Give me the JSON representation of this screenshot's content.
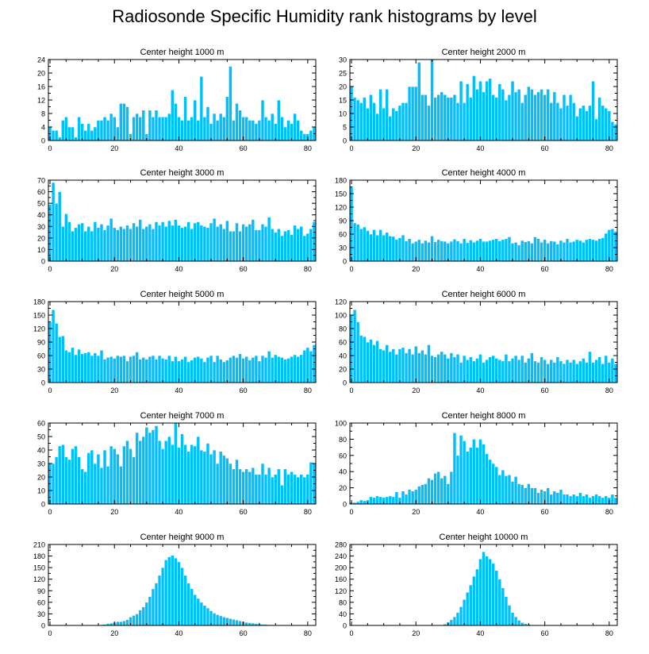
{
  "title": "Radiosonde Specific Humidity rank histograms by level",
  "colors": {
    "bar": "#00BFFF",
    "bar_edge": "#ffffff",
    "axis": "#000000",
    "background": "#ffffff"
  },
  "chart_data": [
    {
      "type": "bar",
      "title": "Center height 1000 m",
      "xlim": [
        -0.5,
        82.5
      ],
      "ylim": [
        0,
        24
      ],
      "yticks": [
        0,
        4,
        8,
        12,
        16,
        20,
        24
      ],
      "xticks": [
        0,
        20,
        40,
        60,
        80
      ],
      "xlabel": "",
      "ylabel": "",
      "values": [
        4,
        3,
        3,
        1,
        6,
        7,
        4,
        4,
        1,
        7,
        5,
        3,
        5,
        3,
        4,
        6,
        6,
        7,
        6,
        8,
        7,
        4,
        11,
        11,
        10,
        2,
        7,
        8,
        7,
        9,
        2,
        9,
        7,
        9,
        7,
        7,
        7,
        8,
        15,
        11,
        7,
        6,
        13,
        6,
        7,
        12,
        6,
        19,
        7,
        10,
        5,
        8,
        6,
        8,
        7,
        13,
        22,
        6,
        11,
        9,
        7,
        7,
        6,
        6,
        5,
        6,
        12,
        7,
        6,
        8,
        5,
        12,
        7,
        4,
        6,
        5,
        8,
        6,
        3,
        2,
        2,
        3,
        4
      ]
    },
    {
      "type": "bar",
      "title": "Center height 2000 m",
      "xlim": [
        -0.5,
        82.5
      ],
      "ylim": [
        0,
        30
      ],
      "yticks": [
        0,
        5,
        10,
        15,
        20,
        25,
        30
      ],
      "xticks": [
        0,
        20,
        40,
        60,
        80
      ],
      "xlabel": "",
      "ylabel": "",
      "values": [
        20,
        16,
        15,
        14,
        16,
        12,
        17,
        14,
        10,
        19,
        12,
        19,
        9,
        12,
        11,
        13,
        14,
        14,
        20,
        20,
        20,
        29,
        17,
        17,
        13,
        30,
        16,
        17,
        18,
        17,
        16,
        16,
        17,
        14,
        22,
        14,
        21,
        16,
        24,
        19,
        22,
        18,
        22,
        23,
        17,
        16,
        21,
        19,
        15,
        17,
        22,
        18,
        19,
        14,
        17,
        20,
        19,
        17,
        18,
        19,
        17,
        19,
        14,
        18,
        14,
        12,
        17,
        13,
        17,
        14,
        9,
        12,
        13,
        11,
        13,
        22,
        8,
        16,
        13,
        12,
        11,
        7,
        6
      ]
    },
    {
      "type": "bar",
      "title": "Center height 3000 m",
      "xlim": [
        -0.5,
        82.5
      ],
      "ylim": [
        0,
        70
      ],
      "yticks": [
        0,
        10,
        20,
        30,
        40,
        50,
        60,
        70
      ],
      "xticks": [
        0,
        20,
        40,
        60,
        80
      ],
      "xlabel": "",
      "ylabel": "",
      "values": [
        49,
        68,
        50,
        60,
        30,
        41,
        34,
        26,
        29,
        32,
        33,
        26,
        30,
        26,
        34,
        29,
        32,
        27,
        31,
        37,
        29,
        27,
        30,
        28,
        31,
        28,
        33,
        30,
        36,
        28,
        30,
        32,
        28,
        34,
        31,
        34,
        30,
        35,
        31,
        36,
        31,
        29,
        30,
        34,
        28,
        33,
        34,
        31,
        30,
        29,
        33,
        37,
        30,
        32,
        28,
        35,
        26,
        26,
        33,
        26,
        32,
        30,
        32,
        36,
        27,
        27,
        32,
        30,
        38,
        28,
        25,
        28,
        22,
        26,
        27,
        23,
        31,
        28,
        30,
        22,
        24,
        28,
        34
      ]
    },
    {
      "type": "bar",
      "title": "Center height 4000 m",
      "xlim": [
        -0.5,
        82.5
      ],
      "ylim": [
        0,
        180
      ],
      "yticks": [
        0,
        30,
        60,
        90,
        120,
        150,
        180
      ],
      "xticks": [
        0,
        20,
        40,
        60,
        80
      ],
      "xlabel": "",
      "ylabel": "",
      "values": [
        165,
        85,
        82,
        72,
        76,
        68,
        60,
        70,
        58,
        70,
        58,
        64,
        56,
        55,
        48,
        52,
        58,
        45,
        50,
        40,
        44,
        48,
        40,
        46,
        42,
        56,
        43,
        48,
        45,
        44,
        40,
        44,
        49,
        45,
        40,
        50,
        41,
        47,
        42,
        46,
        50,
        44,
        44,
        46,
        48,
        50,
        45,
        48,
        50,
        54,
        40,
        42,
        36,
        46,
        43,
        45,
        40,
        54,
        50,
        42,
        48,
        40,
        45,
        44,
        38,
        46,
        42,
        50,
        42,
        44,
        48,
        46,
        42,
        48,
        50,
        48,
        46,
        50,
        52,
        62,
        70,
        72,
        66
      ]
    },
    {
      "type": "bar",
      "title": "Center height 5000 m",
      "xlim": [
        -0.5,
        82.5
      ],
      "ylim": [
        0,
        180
      ],
      "yticks": [
        0,
        30,
        60,
        90,
        120,
        150,
        180
      ],
      "xticks": [
        0,
        20,
        40,
        60,
        80
      ],
      "xlabel": "",
      "ylabel": "",
      "values": [
        135,
        162,
        132,
        102,
        104,
        72,
        68,
        78,
        62,
        74,
        64,
        66,
        68,
        60,
        66,
        60,
        72,
        52,
        56,
        58,
        54,
        60,
        58,
        60,
        48,
        58,
        60,
        68,
        52,
        56,
        52,
        58,
        60,
        52,
        60,
        54,
        52,
        60,
        48,
        58,
        48,
        52,
        58,
        46,
        50,
        56,
        58,
        54,
        46,
        56,
        60,
        46,
        60,
        52,
        46,
        50,
        56,
        60,
        56,
        64,
        54,
        58,
        50,
        56,
        60,
        48,
        60,
        56,
        70,
        56,
        62,
        58,
        56,
        52,
        54,
        58,
        62,
        58,
        62,
        72,
        78,
        70,
        84
      ]
    },
    {
      "type": "bar",
      "title": "Center height 6000 m",
      "xlim": [
        -0.5,
        82.5
      ],
      "ylim": [
        0,
        120
      ],
      "yticks": [
        0,
        20,
        40,
        60,
        80,
        100,
        120
      ],
      "xticks": [
        0,
        20,
        40,
        60,
        80
      ],
      "xlabel": "",
      "ylabel": "",
      "values": [
        100,
        108,
        90,
        70,
        68,
        60,
        64,
        56,
        62,
        50,
        48,
        56,
        46,
        50,
        42,
        50,
        52,
        44,
        50,
        42,
        54,
        44,
        48,
        42,
        56,
        40,
        38,
        42,
        46,
        42,
        36,
        44,
        38,
        42,
        30,
        40,
        34,
        38,
        32,
        36,
        42,
        30,
        34,
        38,
        40,
        36,
        34,
        32,
        42,
        32,
        36,
        40,
        34,
        40,
        30,
        36,
        44,
        32,
        30,
        38,
        34,
        28,
        34,
        30,
        38,
        32,
        28,
        34,
        30,
        34,
        28,
        32,
        36,
        30,
        46,
        30,
        34,
        38,
        28,
        40,
        30,
        36,
        28
      ]
    },
    {
      "type": "bar",
      "title": "Center height 7000 m",
      "xlim": [
        -0.5,
        82.5
      ],
      "ylim": [
        0,
        60
      ],
      "yticks": [
        0,
        10,
        20,
        30,
        40,
        50,
        60
      ],
      "xticks": [
        0,
        20,
        40,
        60,
        80
      ],
      "xlabel": "",
      "ylabel": "",
      "values": [
        30,
        30,
        35,
        43,
        44,
        35,
        33,
        41,
        43,
        35,
        26,
        24,
        38,
        40,
        30,
        37,
        27,
        40,
        28,
        43,
        41,
        37,
        28,
        43,
        47,
        41,
        35,
        53,
        47,
        50,
        57,
        53,
        55,
        58,
        47,
        41,
        47,
        50,
        44,
        60,
        42,
        52,
        44,
        39,
        44,
        43,
        50,
        40,
        39,
        45,
        37,
        40,
        30,
        39,
        36,
        34,
        30,
        26,
        33,
        26,
        24,
        26,
        24,
        27,
        22,
        22,
        30,
        22,
        27,
        20,
        22,
        26,
        14,
        26,
        22,
        24,
        22,
        20,
        22,
        20,
        22,
        31,
        30
      ]
    },
    {
      "type": "bar",
      "title": "Center height 8000 m",
      "xlim": [
        -0.5,
        82.5
      ],
      "ylim": [
        0,
        100
      ],
      "yticks": [
        0,
        20,
        40,
        60,
        80,
        100
      ],
      "xticks": [
        0,
        20,
        40,
        60,
        80
      ],
      "xlabel": "",
      "ylabel": "",
      "values": [
        2,
        2,
        3,
        5,
        4,
        5,
        9,
        8,
        10,
        9,
        8,
        9,
        10,
        9,
        15,
        8,
        16,
        12,
        18,
        16,
        18,
        22,
        24,
        25,
        32,
        30,
        38,
        40,
        32,
        35,
        25,
        40,
        88,
        60,
        85,
        78,
        65,
        70,
        80,
        70,
        80,
        74,
        62,
        55,
        50,
        46,
        36,
        42,
        35,
        36,
        28,
        34,
        25,
        24,
        20,
        25,
        20,
        20,
        14,
        18,
        16,
        20,
        12,
        16,
        14,
        18,
        12,
        12,
        10,
        12,
        10,
        14,
        10,
        12,
        8,
        10,
        12,
        10,
        8,
        10,
        8,
        12,
        8
      ]
    },
    {
      "type": "bar",
      "title": "Center height 9000 m",
      "xlim": [
        -0.5,
        82.5
      ],
      "ylim": [
        0,
        210
      ],
      "yticks": [
        0,
        30,
        60,
        90,
        120,
        150,
        180,
        210
      ],
      "xticks": [
        0,
        20,
        40,
        60,
        80
      ],
      "xlabel": "",
      "ylabel": "",
      "values": [
        0,
        0,
        0,
        0,
        0,
        0,
        0,
        0,
        0,
        0,
        0,
        0,
        0,
        0,
        1,
        1,
        2,
        3,
        5,
        6,
        8,
        10,
        10,
        12,
        15,
        22,
        26,
        30,
        40,
        48,
        60,
        75,
        95,
        110,
        130,
        150,
        170,
        178,
        182,
        175,
        165,
        150,
        130,
        110,
        95,
        80,
        70,
        60,
        52,
        45,
        38,
        32,
        28,
        25,
        22,
        20,
        18,
        16,
        14,
        12,
        10,
        8,
        7,
        6,
        5,
        4,
        3,
        3,
        2,
        2,
        1,
        1,
        1,
        0,
        0,
        0,
        0,
        0,
        0,
        0,
        0,
        0,
        0
      ]
    },
    {
      "type": "bar",
      "title": "Center height 10000 m",
      "xlim": [
        -0.5,
        82.5
      ],
      "ylim": [
        0,
        280
      ],
      "yticks": [
        0,
        40,
        80,
        120,
        160,
        200,
        240,
        280
      ],
      "xticks": [
        0,
        20,
        40,
        60,
        80
      ],
      "xlabel": "",
      "ylabel": "",
      "values": [
        0,
        0,
        0,
        0,
        0,
        0,
        0,
        0,
        0,
        0,
        0,
        0,
        0,
        0,
        0,
        0,
        0,
        0,
        0,
        0,
        0,
        0,
        0,
        0,
        0,
        0,
        0,
        1,
        2,
        5,
        12,
        20,
        30,
        45,
        65,
        90,
        115,
        140,
        170,
        195,
        230,
        255,
        240,
        230,
        215,
        190,
        160,
        130,
        100,
        70,
        45,
        30,
        18,
        10,
        6,
        4,
        2,
        1,
        1,
        0,
        0,
        0,
        0,
        0,
        0,
        0,
        0,
        0,
        0,
        0,
        0,
        0,
        0,
        0,
        0,
        0,
        0,
        0,
        0,
        0,
        0,
        0,
        0
      ]
    }
  ]
}
